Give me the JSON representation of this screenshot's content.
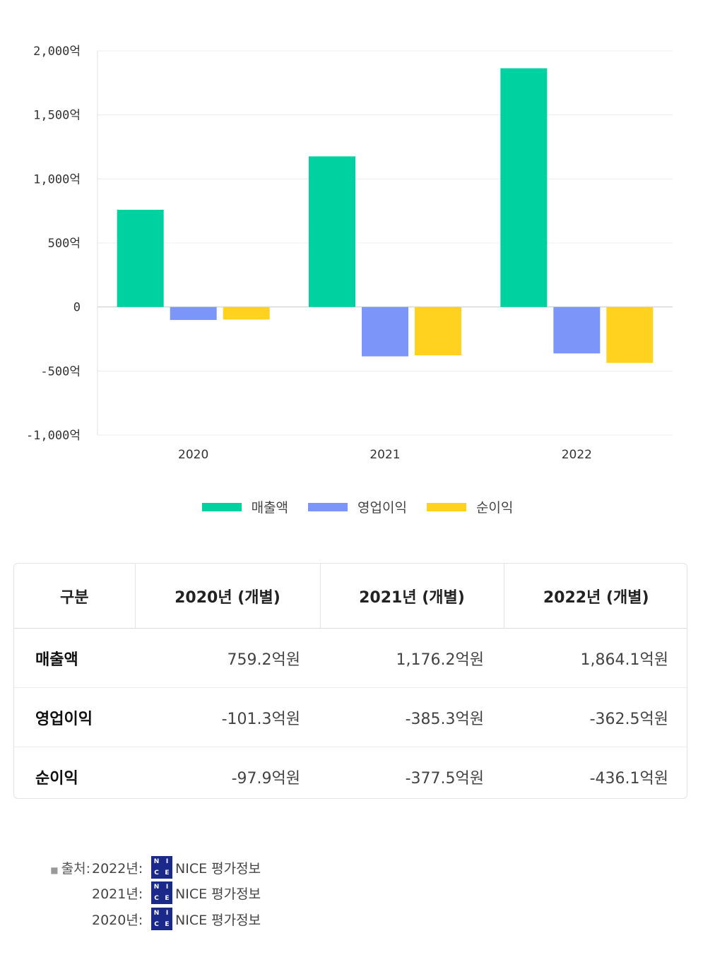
{
  "chart_data": {
    "type": "bar",
    "categories": [
      "2020",
      "2021",
      "2022"
    ],
    "series": [
      {
        "name": "매출액",
        "values": [
          759.2,
          1176.2,
          1864.1
        ],
        "color": "#00d1a0"
      },
      {
        "name": "영업이익",
        "values": [
          -101.3,
          -385.3,
          -362.5
        ],
        "color": "#7b96f8"
      },
      {
        "name": "순이익",
        "values": [
          -97.9,
          -377.5,
          -436.1
        ],
        "color": "#ffd21f"
      }
    ],
    "y_ticks": [
      {
        "value": 2000,
        "label": "2,000억"
      },
      {
        "value": 1500,
        "label": "1,500억"
      },
      {
        "value": 1000,
        "label": "1,000억"
      },
      {
        "value": 500,
        "label": "500억"
      },
      {
        "value": 0,
        "label": "0"
      },
      {
        "value": -500,
        "label": "-500억"
      },
      {
        "value": -1000,
        "label": "-1,000억"
      }
    ],
    "ylim": [
      -1000,
      2000
    ],
    "grid": true,
    "legend_position": "bottom-center"
  },
  "table": {
    "headers": [
      "구분",
      "2020년 (개별)",
      "2021년 (개별)",
      "2022년 (개별)"
    ],
    "rows": [
      {
        "label": "매출액",
        "values": [
          "759.2억원",
          "1,176.2억원",
          "1,864.1억원"
        ]
      },
      {
        "label": "영업이익",
        "values": [
          "-101.3억원",
          "-385.3억원",
          "-362.5억원"
        ]
      },
      {
        "label": "순이익",
        "values": [
          "-97.9억원",
          "-377.5억원",
          "-436.1억원"
        ]
      }
    ]
  },
  "source": {
    "prefix": "출처:",
    "entries": [
      {
        "year": "2022년:",
        "provider": "NICE 평가정보"
      },
      {
        "year": "2021년:",
        "provider": "NICE 평가정보"
      },
      {
        "year": "2020년:",
        "provider": "NICE 평가정보"
      }
    ],
    "logo_letters": [
      "N",
      "I",
      "C",
      "E"
    ]
  }
}
